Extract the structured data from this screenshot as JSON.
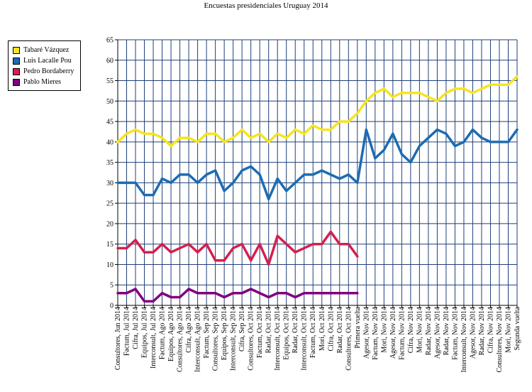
{
  "chart_data": {
    "type": "line",
    "title": "Encuestas presidenciales Uruguay 2014",
    "xlabel": "",
    "ylabel": "",
    "ylim": [
      0,
      65
    ],
    "yticks": [
      0,
      5,
      10,
      15,
      20,
      25,
      30,
      35,
      40,
      45,
      50,
      55,
      60,
      65
    ],
    "grid": true,
    "legend_position": "left",
    "categories": [
      "Consultores, Jun 2014",
      "Factum, Jul 2014",
      "Cifra, Jul 2014",
      "Equipos, Jul 2014",
      "Interconsult, Jul 2014",
      "Factum, Ago 2014",
      "Equipos, Ago 2014",
      "Consultores, Ago 2014",
      "Cifra, Ago 2014",
      "Interconsult, Ago 2014",
      "Factum, Sep 2014",
      "Consultores, Sep 2014",
      "Equipos, Sep 2014",
      "Interconsult, Sep 2014",
      "Cifra, Sep 2014",
      "Consultores, Oct 2014",
      "Factum, Oct 2014",
      "Radar, Oct 2014",
      "Interconsult, Oct 2014",
      "Equipos, Oct 2014",
      "Radar, Oct 2014",
      "Interconsult, Oct 2014",
      "Factum, Oct 2014",
      "Mori, Oct 2014",
      "Cifra, Oct 2014",
      "Radar, Oct 2014",
      "Consultores, Oct 2014",
      "Primera vuelta",
      "Agesor, Nov 2014",
      "Factum, Nov 2014",
      "Mori, Nov 2014",
      "Agesor, Nov 2014",
      "Factum, Nov 2014",
      "Cifra, Nov 2014",
      "Mori, Nov 2014",
      "Radar, Nov 2014",
      "Agesor, Nov 2014",
      "Radar, Nov 2014",
      "Factum, Nov 2014",
      "Interconsult, Nov 2014",
      "Agesor, Nov 2014",
      "Radar, Nov 2014",
      "Cifra, Nov 2014",
      "Consultores, Nov 2014",
      "Mori, Nov 2014",
      "Segunda vuelta"
    ],
    "series": [
      {
        "name": "Tabaré Vázquez",
        "color": "#f5e51e",
        "values": [
          40,
          42,
          43,
          42,
          42,
          41,
          39,
          41,
          41,
          40,
          42,
          42,
          40,
          41,
          43,
          41,
          42,
          40,
          42,
          41,
          43,
          42,
          44,
          43,
          43,
          45,
          45,
          47,
          50,
          52,
          53,
          51,
          52,
          52,
          52,
          51,
          50,
          52,
          53,
          53,
          52,
          53,
          54,
          54,
          54,
          56
        ]
      },
      {
        "name": "Luis Lacalle Pou",
        "color": "#1b6cb2",
        "values": [
          30,
          30,
          30,
          27,
          27,
          31,
          30,
          32,
          32,
          30,
          32,
          33,
          28,
          30,
          33,
          34,
          32,
          26,
          31,
          28,
          30,
          32,
          32,
          33,
          32,
          31,
          32,
          30,
          43,
          36,
          38,
          42,
          37,
          35,
          39,
          41,
          43,
          42,
          39,
          40,
          43,
          41,
          40,
          40,
          40,
          43
        ]
      },
      {
        "name": "Pedro Bordaberry",
        "color": "#d51f4e",
        "values": [
          14,
          14,
          16,
          13,
          13,
          15,
          13,
          14,
          15,
          13,
          15,
          11,
          11,
          14,
          15,
          11,
          15,
          10,
          17,
          15,
          13,
          14,
          15,
          15,
          18,
          15,
          15,
          12,
          null,
          null,
          null,
          null,
          null,
          null,
          null,
          null,
          null,
          null,
          null,
          null,
          null,
          null,
          null,
          null,
          null,
          null
        ]
      },
      {
        "name": "Pablo Mieres",
        "color": "#800080",
        "values": [
          3,
          3,
          4,
          1,
          1,
          3,
          2,
          2,
          4,
          3,
          3,
          3,
          2,
          3,
          3,
          4,
          3,
          2,
          3,
          3,
          2,
          3,
          3,
          3,
          3,
          3,
          3,
          3,
          null,
          null,
          null,
          null,
          null,
          null,
          null,
          null,
          null,
          null,
          null,
          null,
          null,
          null,
          null,
          null,
          null,
          null
        ]
      }
    ]
  }
}
